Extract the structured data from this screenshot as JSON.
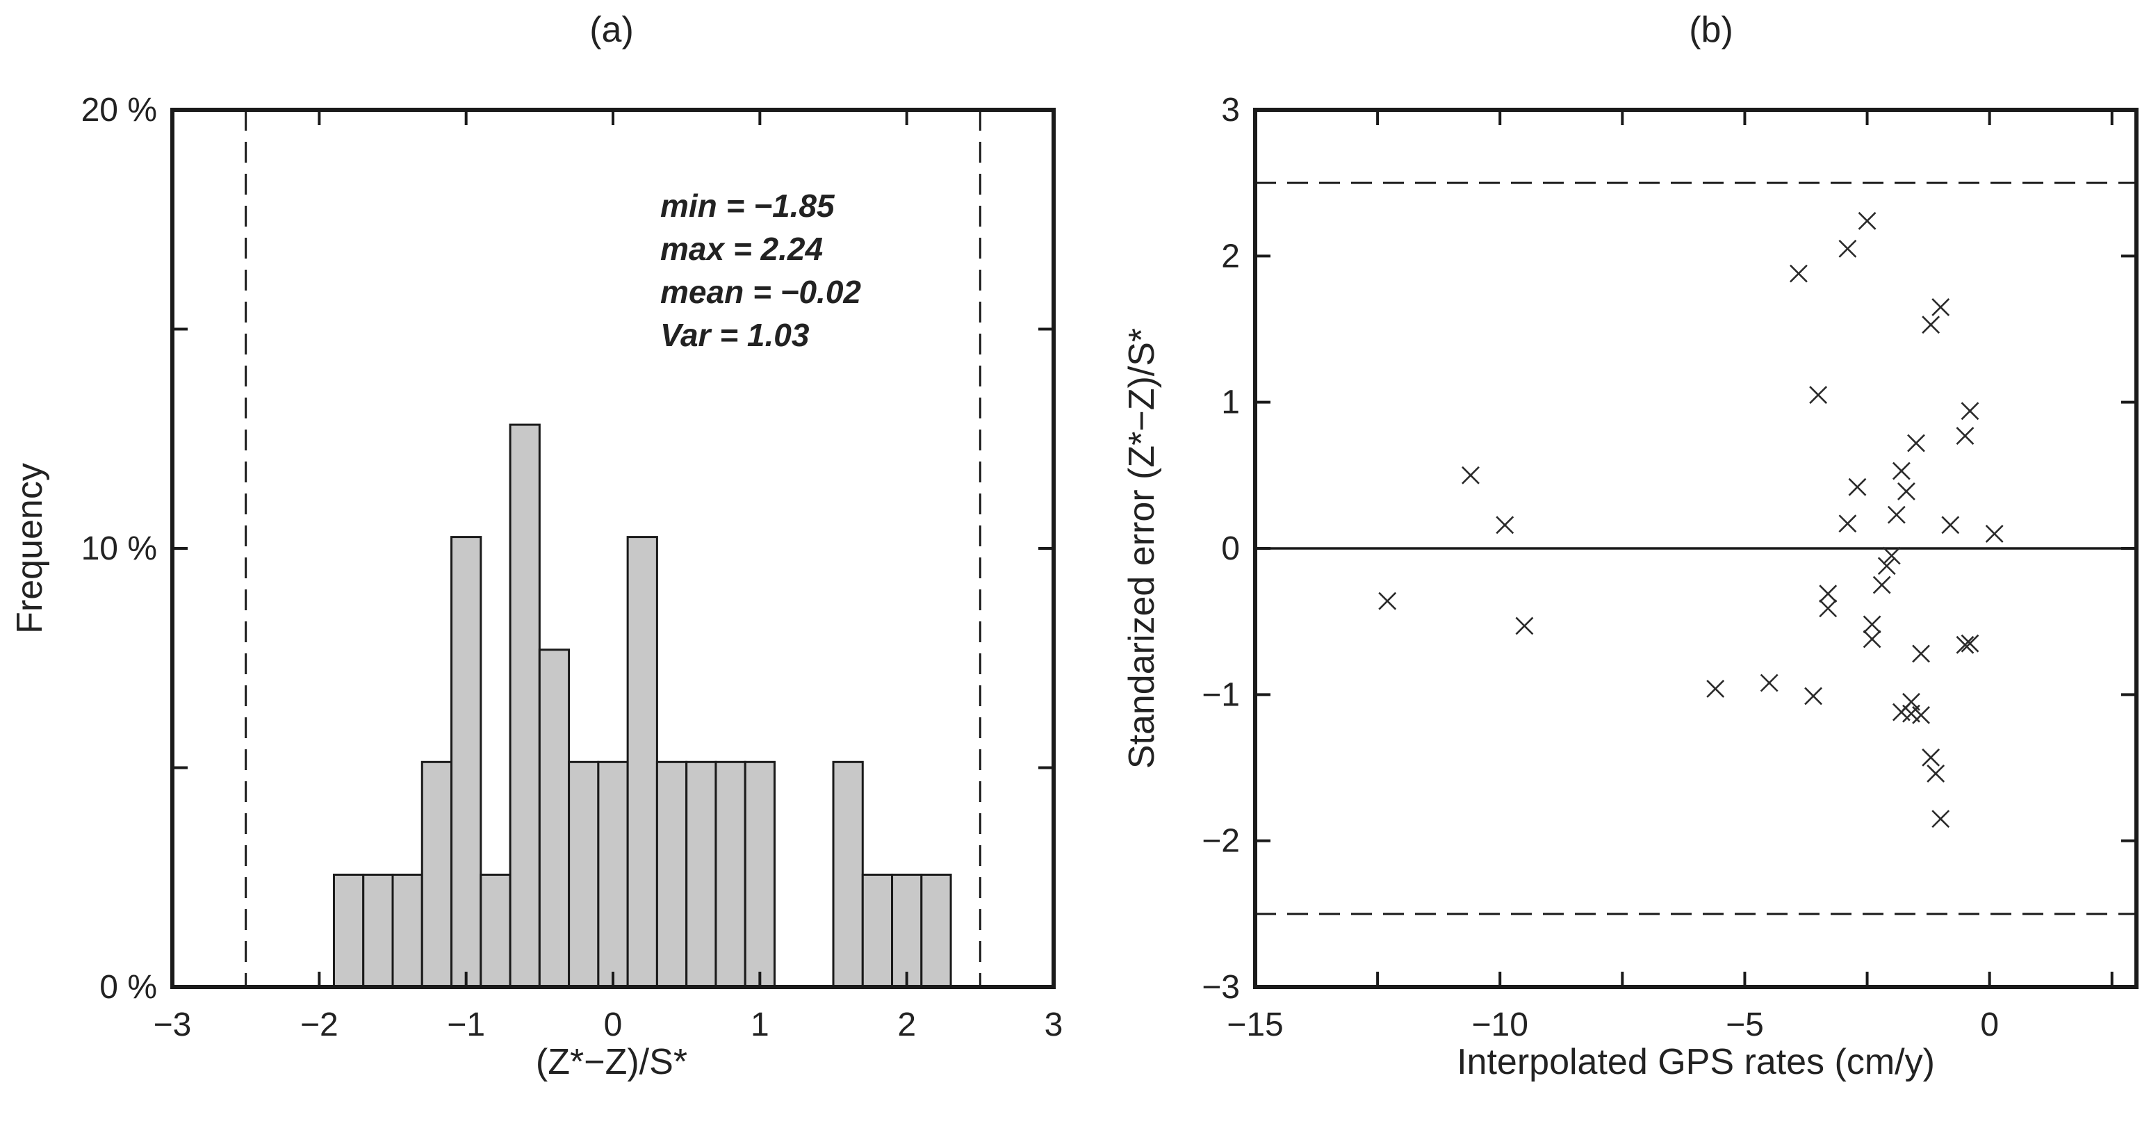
{
  "chart_data": [
    {
      "type": "bar",
      "panel_label": "(a)",
      "xlabel": "(Z*−Z)/S*",
      "ylabel": "Frequency",
      "xlim": [
        -3,
        3
      ],
      "ylim": [
        0,
        20
      ],
      "x_ticks": [
        -3,
        -2,
        -1,
        0,
        1,
        2,
        3
      ],
      "x_tick_labels": [
        "−3",
        "−2",
        "−1",
        "0",
        "1",
        "2",
        "3"
      ],
      "y_ticks": [
        0,
        10,
        20
      ],
      "y_tick_labels": [
        "0 %",
        "10 %",
        "20 %"
      ],
      "y_minor_ticks": [
        5,
        15
      ],
      "grid": false,
      "bin_width": 0.2,
      "bins": [
        {
          "start": -1.9,
          "value": 2.56
        },
        {
          "start": -1.7,
          "value": 2.56
        },
        {
          "start": -1.5,
          "value": 2.56
        },
        {
          "start": -1.3,
          "value": 5.13
        },
        {
          "start": -1.1,
          "value": 10.26
        },
        {
          "start": -0.9,
          "value": 2.56
        },
        {
          "start": -0.7,
          "value": 12.82
        },
        {
          "start": -0.5,
          "value": 7.69
        },
        {
          "start": -0.3,
          "value": 5.13
        },
        {
          "start": -0.1,
          "value": 5.13
        },
        {
          "start": 0.1,
          "value": 10.26
        },
        {
          "start": 0.3,
          "value": 5.13
        },
        {
          "start": 0.5,
          "value": 5.13
        },
        {
          "start": 0.7,
          "value": 5.13
        },
        {
          "start": 0.9,
          "value": 5.13
        },
        {
          "start": 1.5,
          "value": 5.13
        },
        {
          "start": 1.7,
          "value": 2.56
        },
        {
          "start": 1.9,
          "value": 2.56
        },
        {
          "start": 2.1,
          "value": 2.56
        }
      ],
      "reference_lines_x": [
        -2.5,
        2.5
      ],
      "annotations": [
        "min = −1.85",
        "max = 2.24",
        "mean = −0.02",
        "Var = 1.03"
      ]
    },
    {
      "type": "scatter",
      "panel_label": "(b)",
      "xlabel": "Interpolated GPS rates (cm/y)",
      "ylabel": "Standarized error (Z*−Z)/S*",
      "xlim": [
        -15,
        3
      ],
      "ylim": [
        -3,
        3
      ],
      "x_ticks": [
        -15,
        -10,
        -5,
        0
      ],
      "x_tick_labels": [
        "−15",
        "−10",
        "−5",
        "0"
      ],
      "x_minor_ticks": [
        -12.5,
        -7.5,
        -2.5,
        2.5
      ],
      "y_ticks": [
        -3,
        -2,
        -1,
        0,
        1,
        2,
        3
      ],
      "y_tick_labels": [
        "−3",
        "−2",
        "−1",
        "0",
        "1",
        "2",
        "3"
      ],
      "grid": false,
      "reference_lines_y": [
        -2.5,
        2.5
      ],
      "zero_line_y": 0,
      "marker": "x",
      "points": [
        {
          "x": -12.3,
          "y": -0.36
        },
        {
          "x": -10.6,
          "y": 0.5
        },
        {
          "x": -9.9,
          "y": 0.16
        },
        {
          "x": -9.5,
          "y": -0.53
        },
        {
          "x": -5.6,
          "y": -0.96
        },
        {
          "x": -4.5,
          "y": -0.92
        },
        {
          "x": -3.9,
          "y": 1.88
        },
        {
          "x": -3.6,
          "y": -1.01
        },
        {
          "x": -3.5,
          "y": 1.05
        },
        {
          "x": -3.3,
          "y": -0.31
        },
        {
          "x": -3.3,
          "y": -0.41
        },
        {
          "x": -2.9,
          "y": 2.05
        },
        {
          "x": -2.9,
          "y": 0.17
        },
        {
          "x": -2.7,
          "y": 0.42
        },
        {
          "x": -2.5,
          "y": 2.24
        },
        {
          "x": -2.4,
          "y": -0.52
        },
        {
          "x": -2.4,
          "y": -0.62
        },
        {
          "x": -2.2,
          "y": -0.25
        },
        {
          "x": -2.1,
          "y": -0.12
        },
        {
          "x": -2.0,
          "y": -0.05
        },
        {
          "x": -1.9,
          "y": 0.23
        },
        {
          "x": -1.8,
          "y": 0.53
        },
        {
          "x": -1.7,
          "y": 0.39
        },
        {
          "x": -1.8,
          "y": -1.12
        },
        {
          "x": -1.6,
          "y": -1.05
        },
        {
          "x": -1.6,
          "y": -1.13
        },
        {
          "x": -1.5,
          "y": 0.72
        },
        {
          "x": -1.4,
          "y": -0.72
        },
        {
          "x": -1.4,
          "y": -1.14
        },
        {
          "x": -1.2,
          "y": 1.53
        },
        {
          "x": -1.2,
          "y": -1.43
        },
        {
          "x": -1.0,
          "y": 1.65
        },
        {
          "x": -1.1,
          "y": -1.54
        },
        {
          "x": -1.0,
          "y": -1.85
        },
        {
          "x": -0.8,
          "y": 0.16
        },
        {
          "x": -0.5,
          "y": 0.77
        },
        {
          "x": -0.5,
          "y": -0.66
        },
        {
          "x": -0.4,
          "y": -0.65
        },
        {
          "x": -0.4,
          "y": 0.94
        },
        {
          "x": 0.1,
          "y": 0.1
        }
      ]
    }
  ]
}
